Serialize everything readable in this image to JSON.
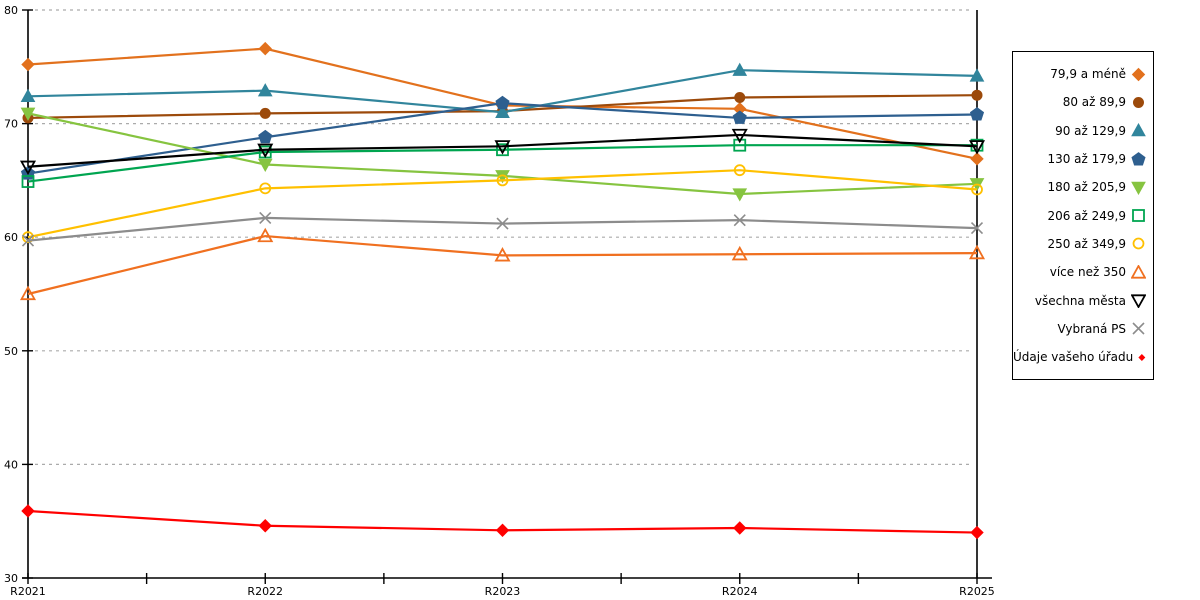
{
  "chart_data": {
    "type": "line",
    "title": "",
    "xlabel": "",
    "ylabel": "",
    "categories": [
      "R2021",
      "R2022",
      "R2023",
      "R2024",
      "R2025"
    ],
    "ylim": [
      30,
      80
    ],
    "yticks": [
      30,
      40,
      50,
      60,
      70,
      80
    ],
    "grid": "horizontal-dashed",
    "legend_position": "right",
    "series": [
      {
        "name": "79,9 a méně",
        "marker": "diamond",
        "filled": true,
        "color": "#E2711D",
        "values": [
          75.2,
          76.6,
          71.6,
          71.3,
          66.9
        ]
      },
      {
        "name": "80 až 89,9",
        "marker": "circle",
        "filled": true,
        "color": "#9C4A0B",
        "values": [
          70.5,
          70.9,
          71.1,
          72.3,
          72.5
        ]
      },
      {
        "name": "90 až 129,9",
        "marker": "triangle-up",
        "filled": true,
        "color": "#31859C",
        "values": [
          72.4,
          72.9,
          71.0,
          74.7,
          74.2
        ]
      },
      {
        "name": "130 až 179,9",
        "marker": "pentagon",
        "filled": true,
        "color": "#2E5F8F",
        "values": [
          65.6,
          68.8,
          71.8,
          70.5,
          70.8
        ]
      },
      {
        "name": "180 až 205,9",
        "marker": "triangle-down",
        "filled": true,
        "color": "#86C440",
        "values": [
          70.9,
          66.4,
          65.4,
          63.8,
          64.7
        ]
      },
      {
        "name": "206 až 249,9",
        "marker": "square",
        "filled": false,
        "color": "#00A550",
        "values": [
          64.9,
          67.5,
          67.7,
          68.1,
          68.1
        ]
      },
      {
        "name": "250 až 349,9",
        "marker": "circle",
        "filled": false,
        "color": "#FFC000",
        "values": [
          60.0,
          64.3,
          65.0,
          65.9,
          64.2
        ]
      },
      {
        "name": "více než 350",
        "marker": "triangle-up",
        "filled": false,
        "color": "#F07020",
        "values": [
          55.0,
          60.1,
          58.4,
          58.5,
          58.6
        ]
      },
      {
        "name": "všechna města",
        "marker": "triangle-down",
        "filled": false,
        "color": "#000000",
        "values": [
          66.2,
          67.7,
          68.0,
          69.0,
          68.0
        ]
      },
      {
        "name": "Vybraná PS",
        "marker": "x",
        "filled": false,
        "color": "#8C8C8C",
        "values": [
          59.7,
          61.7,
          61.2,
          61.5,
          60.8
        ]
      },
      {
        "name": "Údaje vašeho úřadu",
        "marker": "diamond",
        "filled": true,
        "color": "#FF0000",
        "values": [
          35.9,
          34.6,
          34.2,
          34.4,
          34.0
        ]
      }
    ]
  },
  "colors": {
    "background": "#FFFFFF",
    "axis": "#000000",
    "gridline": "#ABABAB",
    "legend_border": "#000000"
  }
}
